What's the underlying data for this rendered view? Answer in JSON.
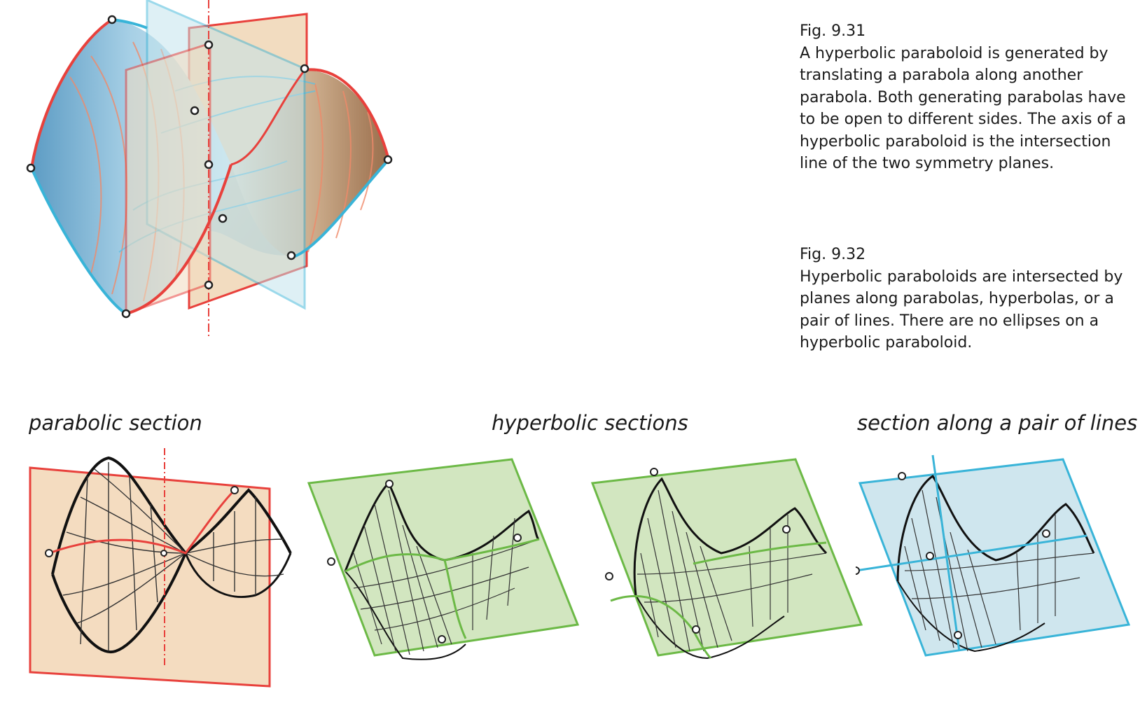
{
  "fig1": {
    "number": "Fig. 9.31",
    "text": "A hyperbolic paraboloid is generated by translating a parabola along another parabola. Both generating parabolas have to be open to different sides. The axis of a hyperbolic paraboloid is the intersection line of the two symmetry planes."
  },
  "fig2": {
    "number": "Fig. 9.32",
    "text": "Hyperbolic paraboloids are intersected by planes along parabolas, hyperbolas, or a pair of lines. There are no ellipses on a hyperbolic paraboloid."
  },
  "sections": {
    "parabolic": "parabolic section",
    "hyperbolic": "hyperbolic sections",
    "lines": "section along a pair of lines"
  },
  "colors": {
    "red_plane": "#e8413c",
    "blue_plane": "#39b4d8",
    "green_plane": "#6cb946",
    "green_fill": "#d2e6c0",
    "blue_fill": "#cfe6ee",
    "orange_fill": "#f4dcc0"
  }
}
